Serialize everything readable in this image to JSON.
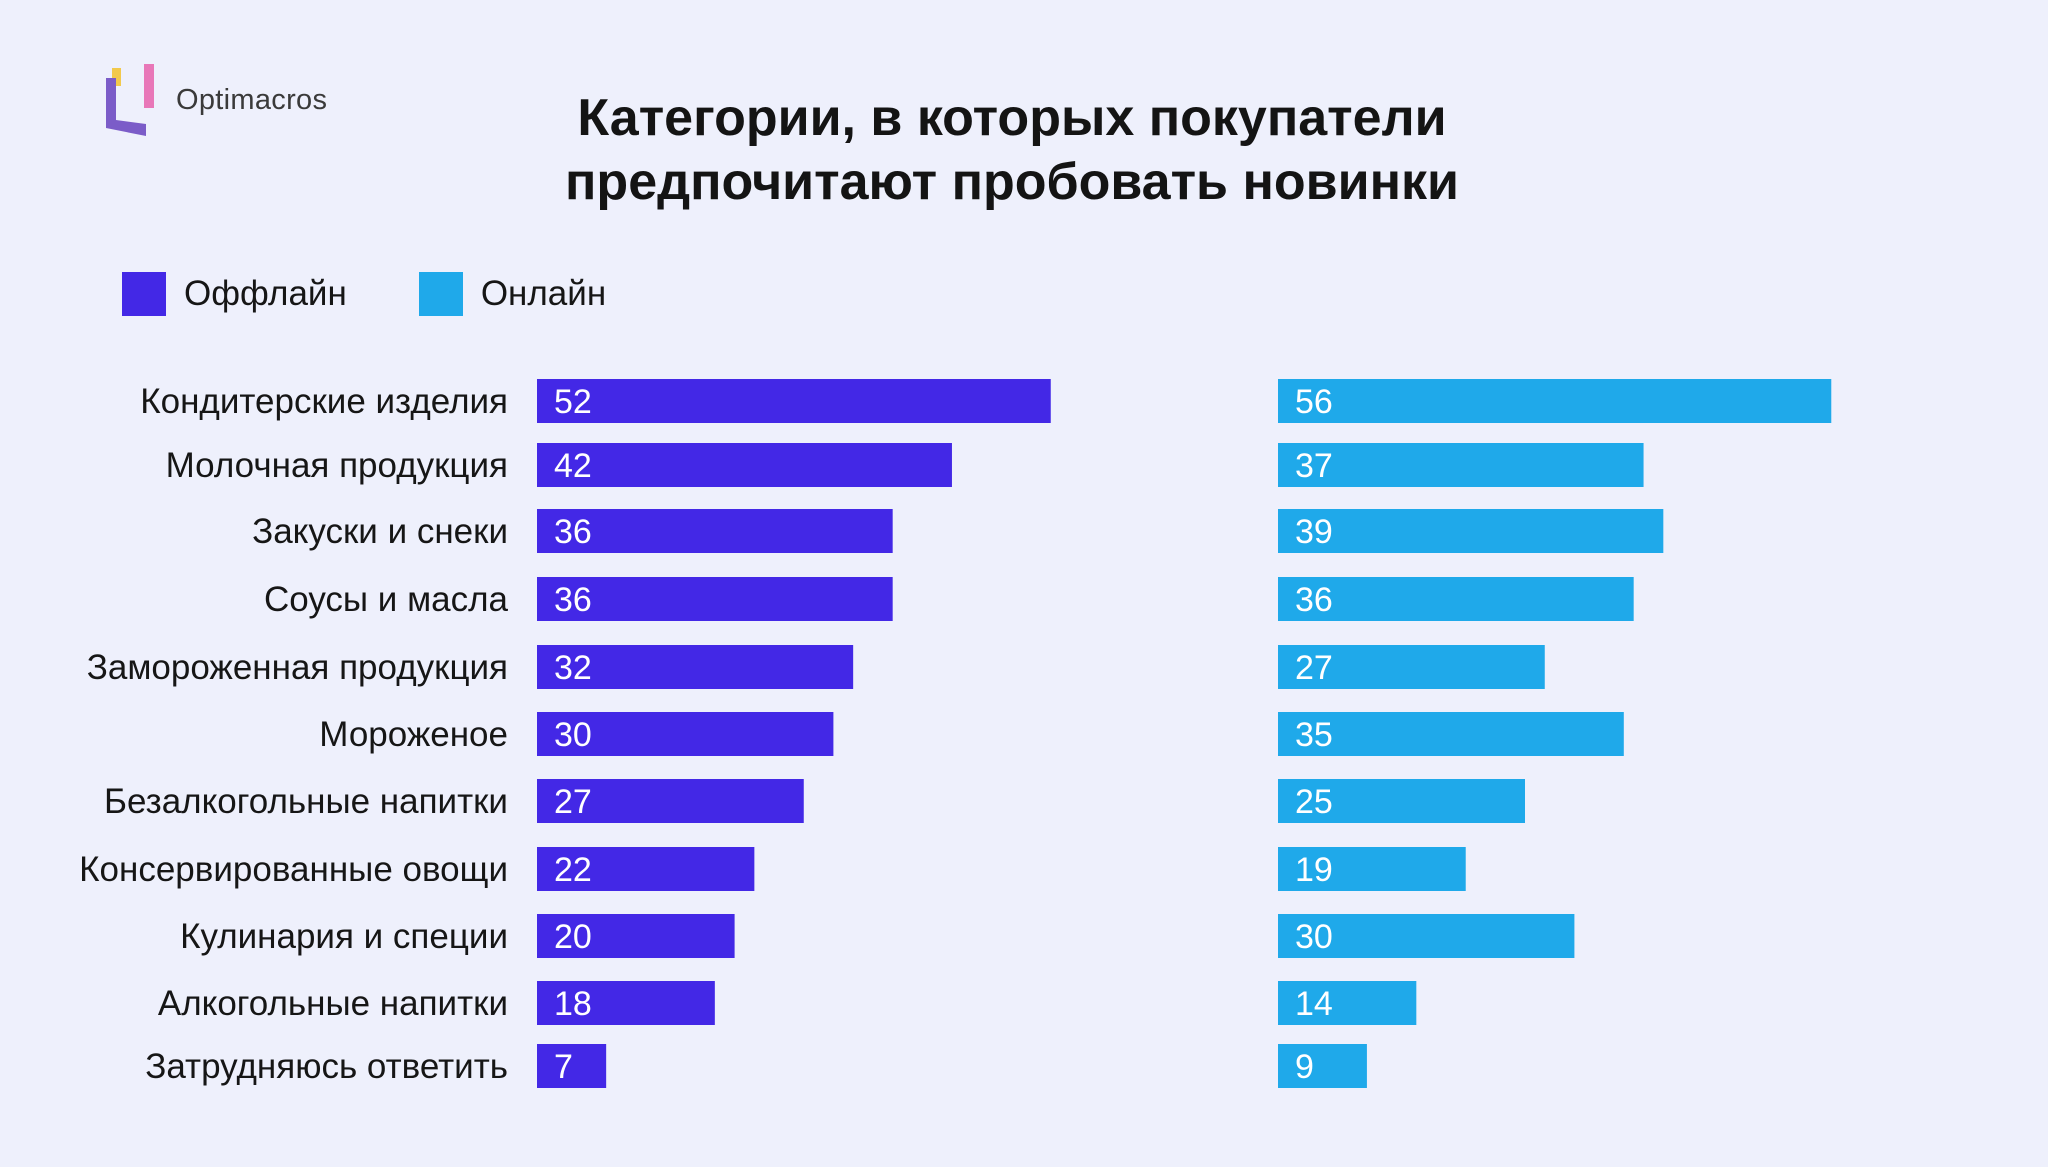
{
  "brand": {
    "name": "Optimacros"
  },
  "colors": {
    "offline": "#4328e6",
    "online": "#1fa9ea",
    "background": "#eef0fc"
  },
  "chart_data": {
    "type": "bar",
    "orientation": "horizontal",
    "title": "Категории, в которых покупатели предпочитают пробовать новинки",
    "title_lines": [
      "Категории, в которых покупатели",
      "предпочитают пробовать новинки"
    ],
    "categories": [
      "Кондитерские изделия",
      "Молочная продукция",
      "Закуски и снеки",
      "Соусы и масла",
      "Замороженная продукция",
      "Мороженое",
      "Безалкогольные напитки",
      "Консервированные овощи",
      "Кулинария и специи",
      "Алкогольные напитки",
      "Затрудняюсь ответить"
    ],
    "series": [
      {
        "name": "Оффлайн",
        "values": [
          52,
          42,
          36,
          36,
          32,
          30,
          27,
          22,
          20,
          18,
          7
        ]
      },
      {
        "name": "Онлайн",
        "values": [
          56,
          37,
          39,
          36,
          27,
          35,
          25,
          19,
          30,
          14,
          9
        ]
      }
    ],
    "legend_position": "top-left",
    "grid": false,
    "data_labels": true
  }
}
